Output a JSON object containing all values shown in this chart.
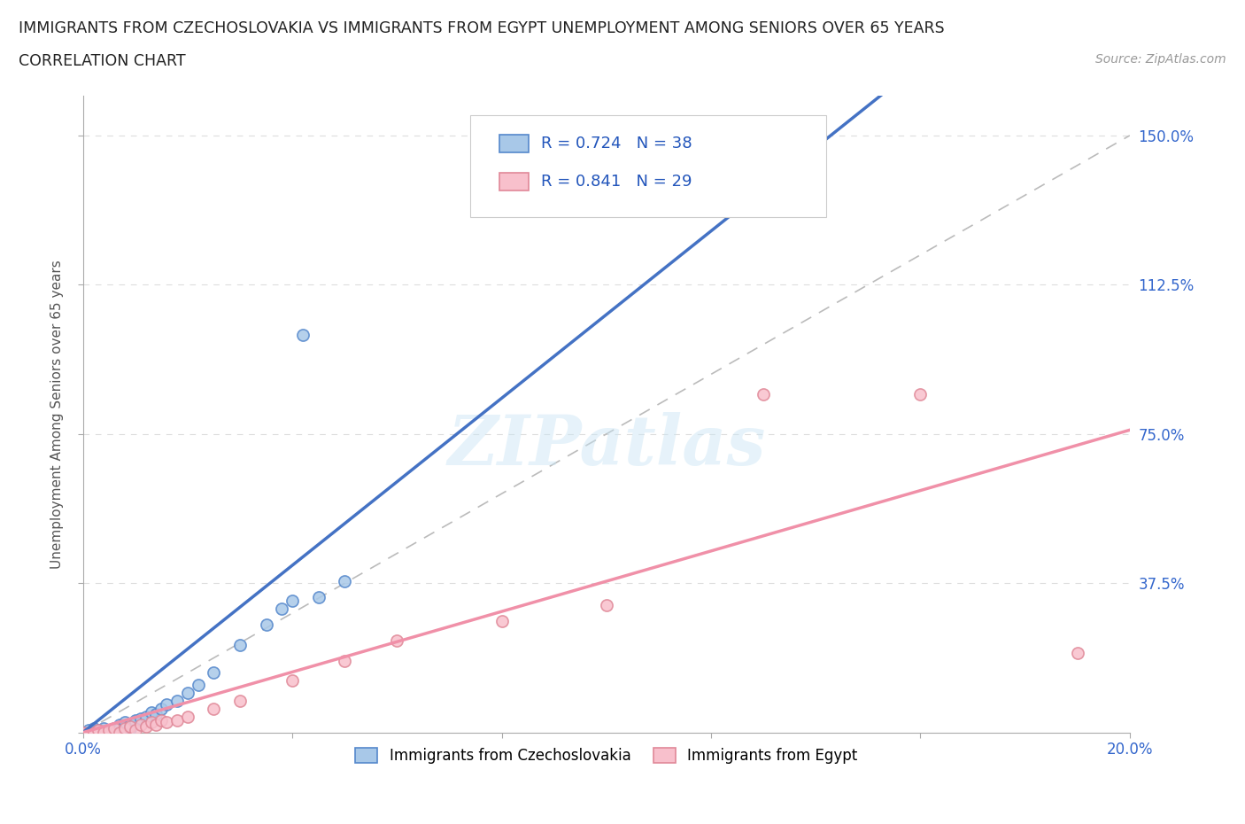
{
  "title_line1": "IMMIGRANTS FROM CZECHOSLOVAKIA VS IMMIGRANTS FROM EGYPT UNEMPLOYMENT AMONG SENIORS OVER 65 YEARS",
  "title_line2": "CORRELATION CHART",
  "source_text": "Source: ZipAtlas.com",
  "ylabel": "Unemployment Among Seniors over 65 years",
  "xlim": [
    0.0,
    0.2
  ],
  "ylim": [
    0.0,
    1.6
  ],
  "x_ticks": [
    0.0,
    0.04,
    0.08,
    0.12,
    0.16,
    0.2
  ],
  "x_tick_labels": [
    "0.0%",
    "",
    "",
    "",
    "",
    "20.0%"
  ],
  "y_ticks": [
    0.0,
    0.375,
    0.75,
    1.125,
    1.5
  ],
  "y_tick_labels": [
    "",
    "37.5%",
    "75.0%",
    "112.5%",
    "150.0%"
  ],
  "color_czech_fill": "#a8c8e8",
  "color_czech_edge": "#5588cc",
  "color_egypt_fill": "#f8c0cc",
  "color_egypt_edge": "#e08898",
  "color_czech_line": "#4472c4",
  "color_egypt_line": "#f090a8",
  "R_czech": 0.724,
  "N_czech": 38,
  "R_egypt": 0.841,
  "N_egypt": 29,
  "legend_label_czech": "Immigrants from Czechoslovakia",
  "legend_label_egypt": "Immigrants from Egypt",
  "diagonal_color": "#bbbbbb",
  "watermark": "ZIPatlas",
  "background_color": "#ffffff",
  "grid_color": "#dddddd",
  "czech_x": [
    0.0,
    0.001,
    0.001,
    0.002,
    0.002,
    0.003,
    0.003,
    0.004,
    0.004,
    0.005,
    0.005,
    0.006,
    0.006,
    0.007,
    0.007,
    0.008,
    0.008,
    0.009,
    0.009,
    0.01,
    0.01,
    0.011,
    0.012,
    0.013,
    0.014,
    0.015,
    0.016,
    0.018,
    0.02,
    0.022,
    0.025,
    0.03,
    0.035,
    0.038,
    0.04,
    0.042,
    0.045,
    0.05
  ],
  "czech_y": [
    0.0,
    0.0,
    0.005,
    0.0,
    0.01,
    0.0,
    0.005,
    0.0,
    0.01,
    0.0,
    0.005,
    0.01,
    0.0,
    0.02,
    0.01,
    0.015,
    0.025,
    0.01,
    0.02,
    0.03,
    0.025,
    0.035,
    0.04,
    0.05,
    0.045,
    0.06,
    0.07,
    0.08,
    0.1,
    0.12,
    0.15,
    0.22,
    0.27,
    0.31,
    0.33,
    1.0,
    0.34,
    0.38
  ],
  "egypt_x": [
    0.0,
    0.001,
    0.002,
    0.003,
    0.004,
    0.005,
    0.006,
    0.007,
    0.008,
    0.009,
    0.01,
    0.011,
    0.012,
    0.013,
    0.014,
    0.015,
    0.016,
    0.018,
    0.02,
    0.025,
    0.03,
    0.04,
    0.05,
    0.06,
    0.08,
    0.1,
    0.13,
    0.16,
    0.19
  ],
  "egypt_y": [
    0.0,
    0.0,
    0.0,
    0.005,
    0.0,
    0.005,
    0.01,
    0.0,
    0.01,
    0.015,
    0.005,
    0.02,
    0.015,
    0.025,
    0.02,
    0.03,
    0.025,
    0.03,
    0.04,
    0.06,
    0.08,
    0.13,
    0.18,
    0.23,
    0.28,
    0.32,
    0.85,
    0.85,
    0.2
  ]
}
